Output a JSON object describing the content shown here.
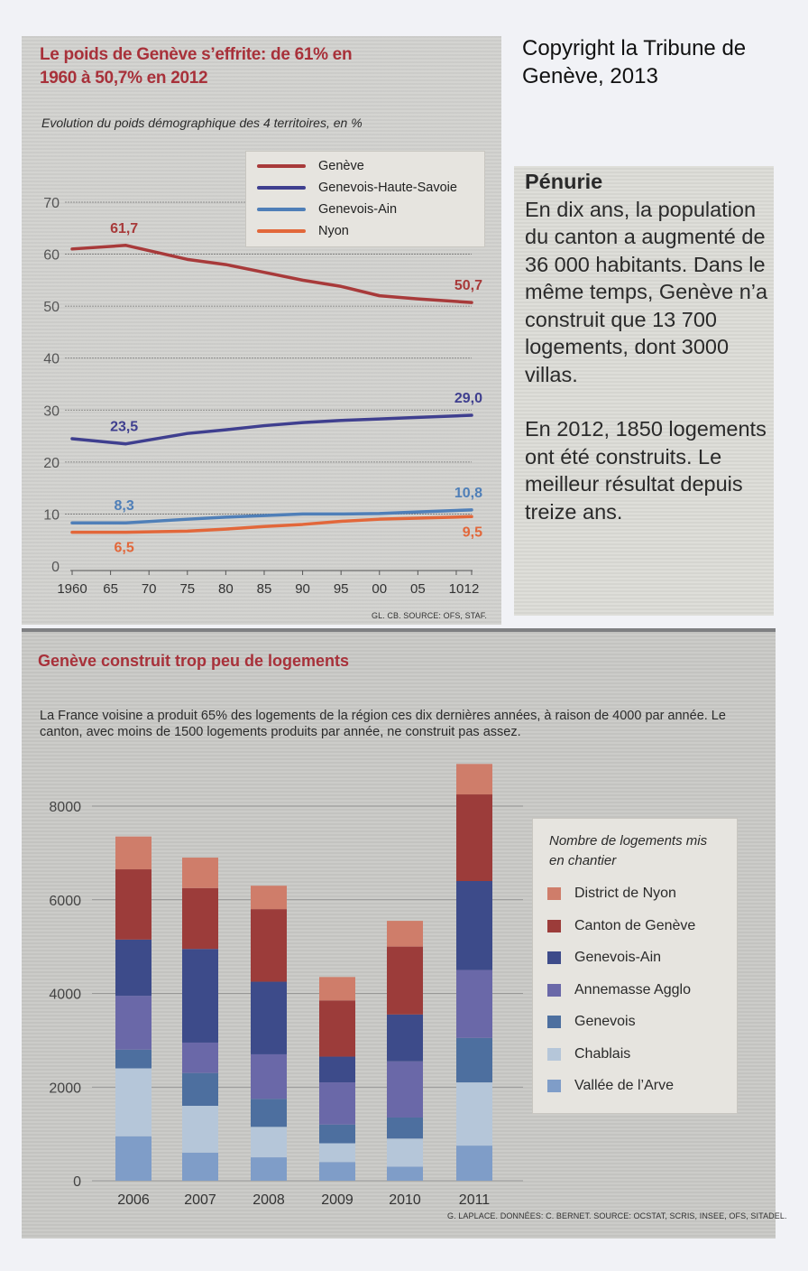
{
  "copyright": "Copyright la Tribune de Genève, 2013",
  "sidebar": {
    "heading": "Pénurie",
    "paragraph1": "En dix ans, la population du canton a augmenté de 36 000 habitants. Dans le même temps, Genève n’a construit que 13 700 logements, dont 3000 villas.",
    "paragraph2": "En 2012, 1850 logements ont été construits. Le meilleur résultat depuis treize ans."
  },
  "chart_data": [
    {
      "type": "line",
      "title": "Le poids de Genève s’effrite: de 61% en 1960 à 50,7% en 2012",
      "subtitle": "Evolution du poids démographique des 4 territoires, en %",
      "xlabel": "",
      "ylabel": "",
      "x": [
        1960,
        1967,
        1975,
        1980,
        1985,
        1990,
        1995,
        2000,
        2005,
        2012
      ],
      "x_tick_labels": [
        "1960",
        "65",
        "70",
        "75",
        "80",
        "85",
        "90",
        "95",
        "00",
        "05",
        "10",
        "12"
      ],
      "x_ticks": [
        1960,
        1965,
        1970,
        1975,
        1980,
        1985,
        1990,
        1995,
        2000,
        2005,
        2010,
        2012
      ],
      "y_ticks": [
        0,
        10,
        20,
        30,
        40,
        50,
        60,
        70
      ],
      "ylim": [
        0,
        70
      ],
      "xlim": [
        1960,
        2012
      ],
      "grid": true,
      "legend_position": "top-right",
      "series": [
        {
          "name": "Genève",
          "color": "#a83a3a",
          "values": [
            61.0,
            61.7,
            59.0,
            58.0,
            56.5,
            55.0,
            53.8,
            52.0,
            51.4,
            50.7
          ]
        },
        {
          "name": "Genevois-Haute-Savoie",
          "color": "#3f3f8f",
          "values": [
            24.5,
            23.5,
            25.5,
            26.2,
            27.0,
            27.6,
            28.0,
            28.3,
            28.6,
            29.0
          ]
        },
        {
          "name": "Genevois-Ain",
          "color": "#4f7fb8",
          "values": [
            8.3,
            8.3,
            9.0,
            9.4,
            9.7,
            10.0,
            10.0,
            10.1,
            10.4,
            10.8
          ]
        },
        {
          "name": "Nyon",
          "color": "#e2673a",
          "values": [
            6.5,
            6.5,
            6.7,
            7.1,
            7.6,
            8.0,
            8.6,
            9.0,
            9.2,
            9.5
          ]
        }
      ],
      "annotations": [
        {
          "series": "Genève",
          "x": 1967,
          "label": "61,7"
        },
        {
          "series": "Genève",
          "x": 2012,
          "label": "50,7"
        },
        {
          "series": "Genevois-Haute-Savoie",
          "x": 1967,
          "label": "23,5"
        },
        {
          "series": "Genevois-Haute-Savoie",
          "x": 2012,
          "label": "29,0"
        },
        {
          "series": "Genevois-Ain",
          "x": 1967,
          "label": "8,3"
        },
        {
          "series": "Genevois-Ain",
          "x": 2012,
          "label": "10,8"
        },
        {
          "series": "Nyon",
          "x": 1967,
          "label": "6,5"
        },
        {
          "series": "Nyon",
          "x": 2012,
          "label": "9,5"
        }
      ],
      "source": "GL. CB. SOURCE: OFS, STAF."
    },
    {
      "type": "bar",
      "stacked": true,
      "title": "Genève construit trop peu de logements",
      "subtitle": "La France voisine a produit 65% des logements de la région ces dix dernières années, à raison de 4000 par année. Le canton, avec moins de 1500 logements produits par année, ne construit pas assez.",
      "legend_title": "Nombre de logements mis en chantier",
      "legend_position": "right",
      "categories": [
        "2006",
        "2007",
        "2008",
        "2009",
        "2010",
        "2011"
      ],
      "y_ticks": [
        0,
        2000,
        4000,
        6000,
        8000
      ],
      "ylim": [
        0,
        9000
      ],
      "grid": true,
      "series": [
        {
          "name": "Vallée de l’Arve",
          "color": "#7f9dc8",
          "values": [
            950,
            600,
            500,
            400,
            300,
            750
          ]
        },
        {
          "name": "Chablais",
          "color": "#b5c6d9",
          "values": [
            1450,
            1000,
            650,
            400,
            600,
            1350
          ]
        },
        {
          "name": "Genevois",
          "color": "#4d6f9f",
          "values": [
            400,
            700,
            600,
            400,
            450,
            950
          ]
        },
        {
          "name": "Annemasse Agglo",
          "color": "#6a68a8",
          "values": [
            1150,
            650,
            950,
            900,
            1200,
            1450
          ]
        },
        {
          "name": "Genevois-Ain",
          "color": "#3d4b8a",
          "values": [
            1200,
            2000,
            1550,
            550,
            1000,
            1900
          ]
        },
        {
          "name": "Canton de Genève",
          "color": "#9c3c3a",
          "values": [
            1500,
            1300,
            1550,
            1200,
            1450,
            1850
          ]
        },
        {
          "name": "District de Nyon",
          "color": "#cf7d6a",
          "values": [
            700,
            650,
            500,
            500,
            550,
            650
          ]
        }
      ],
      "legend_order": [
        "District de Nyon",
        "Canton de Genève",
        "Genevois-Ain",
        "Annemasse Agglo",
        "Genevois",
        "Chablais",
        "Vallée de l’Arve"
      ],
      "source": "G. LAPLACE. DONNÉES: C. BERNET. SOURCE: OCSTAT, SCRIS, INSEE, OFS, SITADEL."
    }
  ]
}
